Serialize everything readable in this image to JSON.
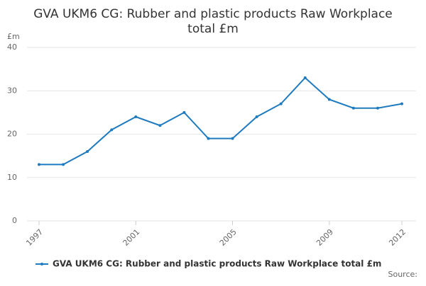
{
  "chart_data": {
    "type": "line",
    "title": "GVA UKM6 CG: Rubber and plastic products Raw Workplace total £m",
    "y_label": "£m",
    "source": "Source:",
    "x": [
      1997,
      1998,
      1999,
      2000,
      2001,
      2002,
      2003,
      2004,
      2005,
      2006,
      2007,
      2008,
      2009,
      2010,
      2011,
      2012
    ],
    "series": [
      {
        "name": "GVA UKM6 CG: Rubber and plastic products Raw Workplace total £m",
        "color": "#1f7bbf",
        "values": [
          13,
          13,
          16,
          21,
          24,
          22,
          25,
          19,
          19,
          24,
          27,
          33,
          28,
          26,
          26,
          27
        ]
      }
    ],
    "xlim": [
      1997,
      2012
    ],
    "xticks": [
      1997,
      2001,
      2005,
      2009,
      2012
    ],
    "ylim": [
      0,
      40
    ],
    "yticks": [
      0,
      10,
      20,
      30,
      40
    ],
    "grid": true
  }
}
